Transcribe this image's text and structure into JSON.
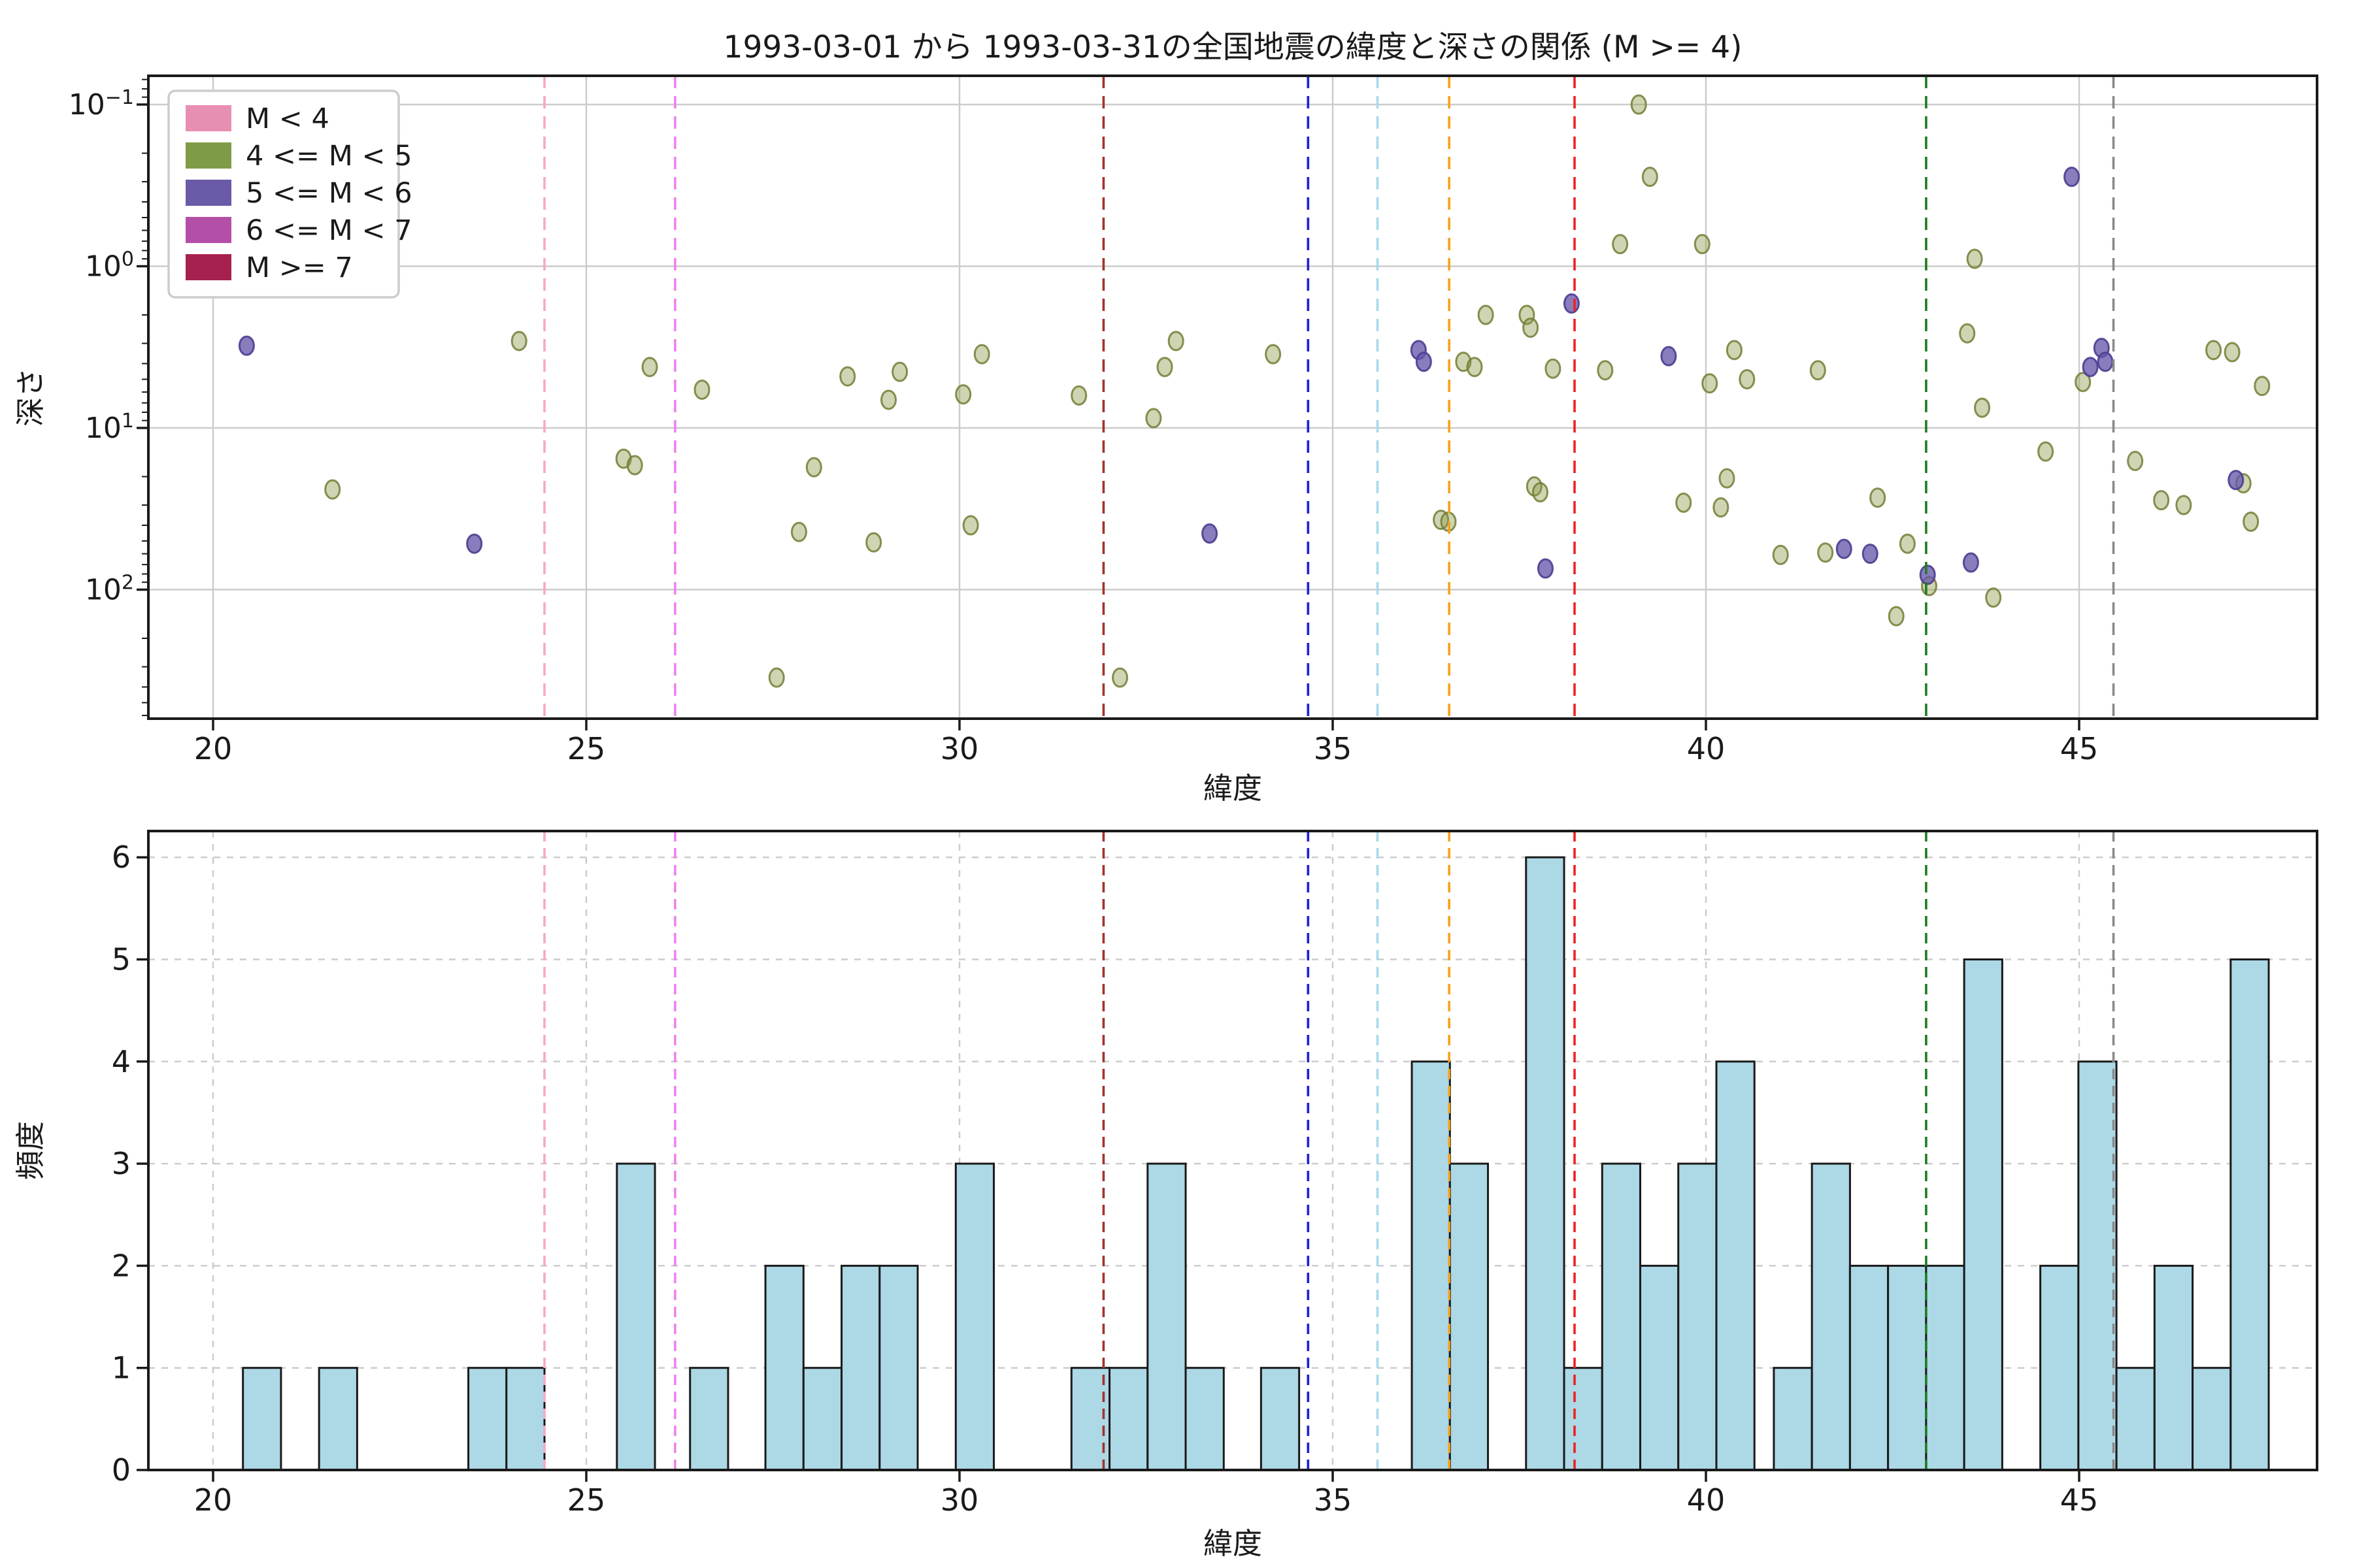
{
  "title": "1993-03-01 から 1993-03-31の全国地震の緯度と深さの関係 (M >= 4)",
  "chart_data": [
    {
      "type": "scatter",
      "xlabel": "緯度",
      "ylabel": "深さ",
      "x_scale": "linear",
      "y_scale": "log",
      "y_inverted": true,
      "xlim": [
        19.13,
        48.19
      ],
      "ylim_depth": [
        0.066,
        620
      ],
      "x_ticks": [
        20,
        25,
        30,
        35,
        40,
        45
      ],
      "y_ticks": [
        0.1,
        1,
        10,
        100
      ],
      "grid": "solid",
      "legend_position": "upper-left",
      "legend": [
        {
          "label": "M < 4",
          "color": "#e78fb3"
        },
        {
          "label": "4 <= M < 5",
          "color": "#7e9c47"
        },
        {
          "label": "5 <= M < 6",
          "color": "#6a5aa8"
        },
        {
          "label": "6 <= M < 7",
          "color": "#b44fa8"
        },
        {
          "label": "M >= 7",
          "color": "#a62050"
        }
      ],
      "series": [
        {
          "name": "4 <= M < 5",
          "fill": "rgba(142,152,74,0.42)",
          "edge": "rgba(113,126,52,0.85)",
          "points": [
            [
              21.6,
              24
            ],
            [
              24.1,
              2.9
            ],
            [
              25.5,
              15.5
            ],
            [
              25.65,
              17
            ],
            [
              25.85,
              4.2
            ],
            [
              26.55,
              5.8
            ],
            [
              27.55,
              350
            ],
            [
              27.85,
              44
            ],
            [
              28.05,
              17.5
            ],
            [
              28.5,
              4.8
            ],
            [
              28.85,
              51
            ],
            [
              29.05,
              6.7
            ],
            [
              29.2,
              4.5
            ],
            [
              30.05,
              6.2
            ],
            [
              30.15,
              40
            ],
            [
              30.3,
              3.5
            ],
            [
              31.6,
              6.3
            ],
            [
              32.15,
              350
            ],
            [
              32.6,
              8.7
            ],
            [
              32.75,
              4.2
            ],
            [
              32.9,
              2.9
            ],
            [
              34.2,
              3.5
            ],
            [
              36.45,
              37
            ],
            [
              36.55,
              38
            ],
            [
              36.75,
              3.9
            ],
            [
              36.9,
              4.2
            ],
            [
              37.05,
              2.0
            ],
            [
              37.6,
              2.0
            ],
            [
              37.65,
              2.4
            ],
            [
              37.7,
              23
            ],
            [
              37.78,
              25
            ],
            [
              37.95,
              4.3
            ],
            [
              38.65,
              4.4
            ],
            [
              38.85,
              0.73
            ],
            [
              39.1,
              0.1
            ],
            [
              39.25,
              0.28
            ],
            [
              39.7,
              29
            ],
            [
              39.95,
              0.73
            ],
            [
              40.05,
              5.3
            ],
            [
              40.2,
              31
            ],
            [
              40.28,
              20.5
            ],
            [
              40.38,
              3.3
            ],
            [
              40.55,
              5.0
            ],
            [
              41.0,
              61
            ],
            [
              41.5,
              4.4
            ],
            [
              41.6,
              59
            ],
            [
              42.3,
              27
            ],
            [
              42.55,
              146
            ],
            [
              42.7,
              52
            ],
            [
              42.99,
              95
            ],
            [
              43.5,
              2.6
            ],
            [
              43.6,
              0.9
            ],
            [
              43.7,
              7.5
            ],
            [
              43.85,
              112
            ],
            [
              44.55,
              14
            ],
            [
              45.05,
              5.2
            ],
            [
              45.75,
              16
            ],
            [
              46.1,
              28
            ],
            [
              46.4,
              30
            ],
            [
              46.8,
              3.3
            ],
            [
              47.05,
              3.4
            ],
            [
              47.2,
              22
            ],
            [
              47.3,
              38
            ],
            [
              47.45,
              5.5
            ]
          ]
        },
        {
          "name": "5 <= M < 6",
          "fill": "rgba(104,88,172,0.78)",
          "edge": "rgba(82,66,148,0.95)",
          "points": [
            [
              20.45,
              3.1
            ],
            [
              23.5,
              52
            ],
            [
              33.35,
              45
            ],
            [
              36.15,
              3.3
            ],
            [
              36.22,
              3.9
            ],
            [
              37.85,
              74
            ],
            [
              38.2,
              1.7
            ],
            [
              39.5,
              3.6
            ],
            [
              41.85,
              56
            ],
            [
              42.2,
              60
            ],
            [
              42.97,
              81
            ],
            [
              43.55,
              68
            ],
            [
              44.9,
              0.28
            ],
            [
              45.15,
              4.2
            ],
            [
              45.3,
              3.2
            ],
            [
              45.35,
              3.9
            ],
            [
              47.1,
              21
            ]
          ]
        }
      ],
      "vlines": [
        {
          "x": 24.44,
          "color": "#f8a8c2"
        },
        {
          "x": 26.19,
          "color": "#ee82ee"
        },
        {
          "x": 31.93,
          "color": "#a2342c"
        },
        {
          "x": 34.67,
          "color": "#2020d6"
        },
        {
          "x": 35.6,
          "color": "#a8d9ec"
        },
        {
          "x": 36.56,
          "color": "#f5a21b"
        },
        {
          "x": 38.24,
          "color": "#ee2222"
        },
        {
          "x": 42.95,
          "color": "#1e7d1e"
        },
        {
          "x": 45.46,
          "color": "#8a8a8a"
        }
      ]
    },
    {
      "type": "histogram",
      "xlabel": "緯度",
      "ylabel": "頻度",
      "xlim": [
        19.13,
        48.19
      ],
      "ylim": [
        0,
        6.26
      ],
      "x_ticks": [
        20,
        25,
        30,
        35,
        40,
        45
      ],
      "y_ticks": [
        0,
        1,
        2,
        3,
        4,
        5,
        6
      ],
      "grid": "dashed",
      "bar_fill": "#add8e6",
      "bar_edge": "#1a1a1a",
      "bin_width": 0.51,
      "bars": [
        {
          "start": 20.4,
          "count": 1
        },
        {
          "start": 21.42,
          "count": 1
        },
        {
          "start": 23.42,
          "count": 1
        },
        {
          "start": 23.93,
          "count": 1
        },
        {
          "start": 25.41,
          "count": 3
        },
        {
          "start": 26.39,
          "count": 1
        },
        {
          "start": 27.4,
          "count": 2
        },
        {
          "start": 27.91,
          "count": 1
        },
        {
          "start": 28.42,
          "count": 2
        },
        {
          "start": 28.93,
          "count": 2
        },
        {
          "start": 29.95,
          "count": 3
        },
        {
          "start": 31.5,
          "count": 1
        },
        {
          "start": 32.01,
          "count": 1
        },
        {
          "start": 32.52,
          "count": 3
        },
        {
          "start": 33.03,
          "count": 1
        },
        {
          "start": 34.04,
          "count": 1
        },
        {
          "start": 36.06,
          "count": 4
        },
        {
          "start": 36.57,
          "count": 3
        },
        {
          "start": 37.59,
          "count": 6
        },
        {
          "start": 38.1,
          "count": 1
        },
        {
          "start": 38.61,
          "count": 3
        },
        {
          "start": 39.12,
          "count": 2
        },
        {
          "start": 39.63,
          "count": 3
        },
        {
          "start": 40.14,
          "count": 4
        },
        {
          "start": 40.91,
          "count": 1
        },
        {
          "start": 41.42,
          "count": 3
        },
        {
          "start": 41.93,
          "count": 2
        },
        {
          "start": 42.44,
          "count": 2
        },
        {
          "start": 42.95,
          "count": 2
        },
        {
          "start": 43.46,
          "count": 5
        },
        {
          "start": 44.48,
          "count": 2
        },
        {
          "start": 44.99,
          "count": 4
        },
        {
          "start": 45.5,
          "count": 1
        },
        {
          "start": 46.01,
          "count": 2
        },
        {
          "start": 46.52,
          "count": 1
        },
        {
          "start": 47.03,
          "count": 5
        }
      ],
      "vlines": [
        {
          "x": 24.44,
          "color": "#f8a8c2"
        },
        {
          "x": 26.19,
          "color": "#ee82ee"
        },
        {
          "x": 31.93,
          "color": "#a2342c"
        },
        {
          "x": 34.67,
          "color": "#2020d6"
        },
        {
          "x": 35.6,
          "color": "#a8d9ec"
        },
        {
          "x": 36.56,
          "color": "#f5a21b"
        },
        {
          "x": 38.24,
          "color": "#ee2222"
        },
        {
          "x": 42.95,
          "color": "#1e7d1e"
        },
        {
          "x": 45.46,
          "color": "#8a8a8a"
        }
      ]
    }
  ]
}
